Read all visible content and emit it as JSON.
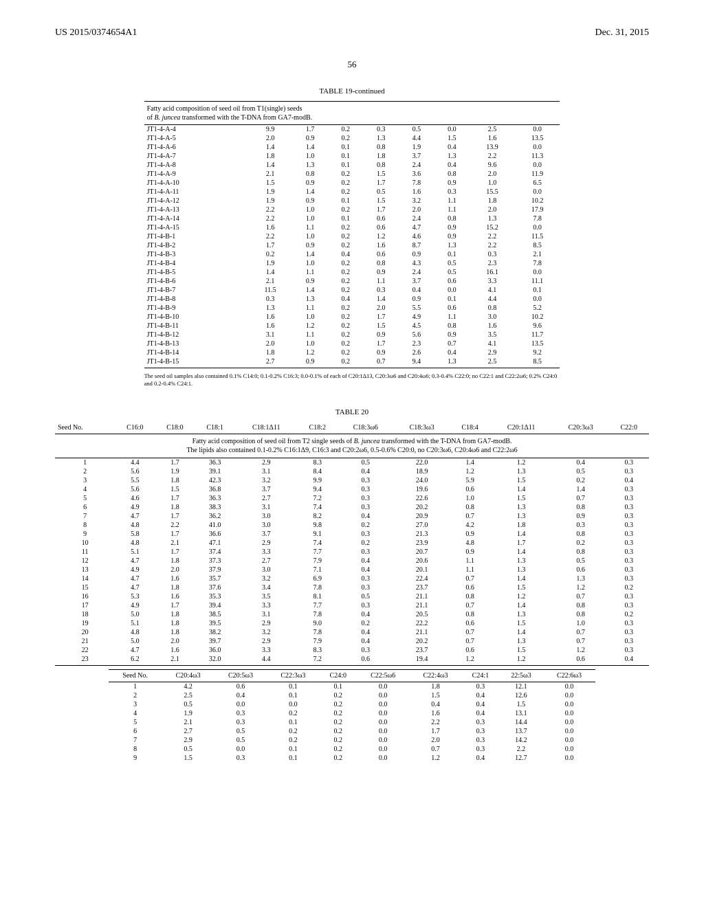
{
  "header": {
    "left": "US 2015/0374654A1",
    "right": "Dec. 31, 2015"
  },
  "page_num": "56",
  "table19": {
    "title": "TABLE 19-continued",
    "caption_line1": "Fatty acid composition of seed oil from T1(single) seeds",
    "caption_line2": "of B. juncea transformed with the T-DNA from GA7-modB.",
    "rows": [
      [
        "JT1-4-A-4",
        "9.9",
        "1.7",
        "0.2",
        "0.3",
        "0.5",
        "0.0",
        "2.5",
        "0.0"
      ],
      [
        "JT1-4-A-5",
        "2.0",
        "0.9",
        "0.2",
        "1.3",
        "4.4",
        "1.5",
        "1.6",
        "13.5"
      ],
      [
        "JT1-4-A-6",
        "1.4",
        "1.4",
        "0.1",
        "0.8",
        "1.9",
        "0.4",
        "13.9",
        "0.0"
      ],
      [
        "JT1-4-A-7",
        "1.8",
        "1.0",
        "0.1",
        "1.8",
        "3.7",
        "1.3",
        "2.2",
        "11.3"
      ],
      [
        "JT1-4-A-8",
        "1.4",
        "1.3",
        "0.1",
        "0.8",
        "2.4",
        "0.4",
        "9.6",
        "0.0"
      ],
      [
        "JT1-4-A-9",
        "2.1",
        "0.8",
        "0.2",
        "1.5",
        "3.6",
        "0.8",
        "2.0",
        "11.9"
      ],
      [
        "JT1-4-A-10",
        "1.5",
        "0.9",
        "0.2",
        "1.7",
        "7.8",
        "0.9",
        "1.0",
        "6.5"
      ],
      [
        "JT1-4-A-11",
        "1.9",
        "1.4",
        "0.2",
        "0.5",
        "1.6",
        "0.3",
        "15.5",
        "0.0"
      ],
      [
        "JT1-4-A-12",
        "1.9",
        "0.9",
        "0.1",
        "1.5",
        "3.2",
        "1.1",
        "1.8",
        "10.2"
      ],
      [
        "JT1-4-A-13",
        "2.2",
        "1.0",
        "0.2",
        "1.7",
        "2.0",
        "1.1",
        "2.0",
        "17.9"
      ],
      [
        "JT1-4-A-14",
        "2.2",
        "1.0",
        "0.1",
        "0.6",
        "2.4",
        "0.8",
        "1.3",
        "7.8"
      ],
      [
        "JT1-4-A-15",
        "1.6",
        "1.1",
        "0.2",
        "0.6",
        "4.7",
        "0.9",
        "15.2",
        "0.0"
      ],
      [
        "JT1-4-B-1",
        "2.2",
        "1.0",
        "0.2",
        "1.2",
        "4.6",
        "0.9",
        "2.2",
        "11.5"
      ],
      [
        "JT1-4-B-2",
        "1.7",
        "0.9",
        "0.2",
        "1.6",
        "8.7",
        "1.3",
        "2.2",
        "8.5"
      ],
      [
        "JT1-4-B-3",
        "0.2",
        "1.4",
        "0.4",
        "0.6",
        "0.9",
        "0.1",
        "0.3",
        "2.1"
      ],
      [
        "JT1-4-B-4",
        "1.9",
        "1.0",
        "0.2",
        "0.8",
        "4.3",
        "0.5",
        "2.3",
        "7.8"
      ],
      [
        "JT1-4-B-5",
        "1.4",
        "1.1",
        "0.2",
        "0.9",
        "2.4",
        "0.5",
        "16.1",
        "0.0"
      ],
      [
        "JT1-4-B-6",
        "2.1",
        "0.9",
        "0.2",
        "1.1",
        "3.7",
        "0.6",
        "3.3",
        "11.1"
      ],
      [
        "JT1-4-B-7",
        "11.5",
        "1.4",
        "0.2",
        "0.3",
        "0.4",
        "0.0",
        "4.1",
        "0.1"
      ],
      [
        "JT1-4-B-8",
        "0.3",
        "1.3",
        "0.4",
        "1.4",
        "0.9",
        "0.1",
        "4.4",
        "0.0"
      ],
      [
        "JT1-4-B-9",
        "1.3",
        "1.1",
        "0.2",
        "2.0",
        "5.5",
        "0.6",
        "0.8",
        "5.2"
      ],
      [
        "JT1-4-B-10",
        "1.6",
        "1.0",
        "0.2",
        "1.7",
        "4.9",
        "1.1",
        "3.0",
        "10.2"
      ],
      [
        "JT1-4-B-11",
        "1.6",
        "1.2",
        "0.2",
        "1.5",
        "4.5",
        "0.8",
        "1.6",
        "9.6"
      ],
      [
        "JT1-4-B-12",
        "3.1",
        "1.1",
        "0.2",
        "0.9",
        "5.6",
        "0.9",
        "3.5",
        "11.7"
      ],
      [
        "JT1-4-B-13",
        "2.0",
        "1.0",
        "0.2",
        "1.7",
        "2.3",
        "0.7",
        "4.1",
        "13.5"
      ],
      [
        "JT1-4-B-14",
        "1.8",
        "1.2",
        "0.2",
        "0.9",
        "2.6",
        "0.4",
        "2.9",
        "9.2"
      ],
      [
        "JT1-4-B-15",
        "2.7",
        "0.9",
        "0.2",
        "0.7",
        "9.4",
        "1.3",
        "2.5",
        "8.5"
      ]
    ],
    "footnote": "The seed oil samples also contained 0.1% C14:0; 0.1-0.2% C16:3; 0.0-0.1% of each of C20:1Δ13, C20:3ω6 and C20:4ω6; 0.3-0.4% C22:0; no C22:1 and C22:2ω6; 0.2% C24:0 and 0.2-0.4% C24:1."
  },
  "table20": {
    "title": "TABLE 20",
    "caption_line1": "Fatty acid composition of seed oil from T2 single seeds of B. juncea transformed with the T-DNA from GA7-modB.",
    "caption_line2": "The lipids also contained 0.1-0.2% C16:1Δ9, C16:3 and C20:2ω6, 0.5-0.6% C20:0, no C20:3ω6, C20:4ω6 and C22:2ω6",
    "headers_a": [
      "Seed No.",
      "C16:0",
      "C18:0",
      "C18:1",
      "C18:1Δ11",
      "C18:2",
      "C18:3ω6",
      "C18:3ω3",
      "C18:4",
      "C20:1Δ11",
      "C20:3ω3",
      "C22:0"
    ],
    "rows_a": [
      [
        "1",
        "4.4",
        "1.7",
        "36.3",
        "2.9",
        "8.3",
        "0.5",
        "22.0",
        "1.4",
        "1.2",
        "0.4",
        "0.3"
      ],
      [
        "2",
        "5.6",
        "1.9",
        "39.1",
        "3.1",
        "8.4",
        "0.4",
        "18.9",
        "1.2",
        "1.3",
        "0.5",
        "0.3"
      ],
      [
        "3",
        "5.5",
        "1.8",
        "42.3",
        "3.2",
        "9.9",
        "0.3",
        "24.0",
        "5.9",
        "1.5",
        "0.2",
        "0.4"
      ],
      [
        "4",
        "5.6",
        "1.5",
        "36.8",
        "3.7",
        "9.4",
        "0.3",
        "19.6",
        "0.6",
        "1.4",
        "1.4",
        "0.3"
      ],
      [
        "5",
        "4.6",
        "1.7",
        "36.3",
        "2.7",
        "7.2",
        "0.3",
        "22.6",
        "1.0",
        "1.5",
        "0.7",
        "0.3"
      ],
      [
        "6",
        "4.9",
        "1.8",
        "38.3",
        "3.1",
        "7.4",
        "0.3",
        "20.2",
        "0.8",
        "1.3",
        "0.8",
        "0.3"
      ],
      [
        "7",
        "4.7",
        "1.7",
        "36.2",
        "3.0",
        "8.2",
        "0.4",
        "20.9",
        "0.7",
        "1.3",
        "0.9",
        "0.3"
      ],
      [
        "8",
        "4.8",
        "2.2",
        "41.0",
        "3.0",
        "9.8",
        "0.2",
        "27.0",
        "4.2",
        "1.8",
        "0.3",
        "0.3"
      ],
      [
        "9",
        "5.8",
        "1.7",
        "36.6",
        "3.7",
        "9.1",
        "0.3",
        "21.3",
        "0.9",
        "1.4",
        "0.8",
        "0.3"
      ],
      [
        "10",
        "4.8",
        "2.1",
        "47.1",
        "2.9",
        "7.4",
        "0.2",
        "23.9",
        "4.8",
        "1.7",
        "0.2",
        "0.3"
      ],
      [
        "11",
        "5.1",
        "1.7",
        "37.4",
        "3.3",
        "7.7",
        "0.3",
        "20.7",
        "0.9",
        "1.4",
        "0.8",
        "0.3"
      ],
      [
        "12",
        "4.7",
        "1.8",
        "37.3",
        "2.7",
        "7.9",
        "0.4",
        "20.6",
        "1.1",
        "1.3",
        "0.5",
        "0.3"
      ],
      [
        "13",
        "4.9",
        "2.0",
        "37.9",
        "3.0",
        "7.1",
        "0.4",
        "20.1",
        "1.1",
        "1.3",
        "0.6",
        "0.3"
      ],
      [
        "14",
        "4.7",
        "1.6",
        "35.7",
        "3.2",
        "6.9",
        "0.3",
        "22.4",
        "0.7",
        "1.4",
        "1.3",
        "0.3"
      ],
      [
        "15",
        "4.7",
        "1.8",
        "37.6",
        "3.4",
        "7.8",
        "0.3",
        "23.7",
        "0.6",
        "1.5",
        "1.2",
        "0.2"
      ],
      [
        "16",
        "5.3",
        "1.6",
        "35.3",
        "3.5",
        "8.1",
        "0.5",
        "21.1",
        "0.8",
        "1.2",
        "0.7",
        "0.3"
      ],
      [
        "17",
        "4.9",
        "1.7",
        "39.4",
        "3.3",
        "7.7",
        "0.3",
        "21.1",
        "0.7",
        "1.4",
        "0.8",
        "0.3"
      ],
      [
        "18",
        "5.0",
        "1.8",
        "38.5",
        "3.1",
        "7.8",
        "0.4",
        "20.5",
        "0.8",
        "1.3",
        "0.8",
        "0.2"
      ],
      [
        "19",
        "5.1",
        "1.8",
        "39.5",
        "2.9",
        "9.0",
        "0.2",
        "22.2",
        "0.6",
        "1.5",
        "1.0",
        "0.3"
      ],
      [
        "20",
        "4.8",
        "1.8",
        "38.2",
        "3.2",
        "7.8",
        "0.4",
        "21.1",
        "0.7",
        "1.4",
        "0.7",
        "0.3"
      ],
      [
        "21",
        "5.0",
        "2.0",
        "39.7",
        "2.9",
        "7.9",
        "0.4",
        "20.2",
        "0.7",
        "1.3",
        "0.7",
        "0.3"
      ],
      [
        "22",
        "4.7",
        "1.6",
        "36.0",
        "3.3",
        "8.3",
        "0.3",
        "23.7",
        "0.6",
        "1.5",
        "1.2",
        "0.3"
      ],
      [
        "23",
        "6.2",
        "2.1",
        "32.0",
        "4.4",
        "7.2",
        "0.6",
        "19.4",
        "1.2",
        "1.2",
        "0.6",
        "0.4"
      ]
    ],
    "headers_b": [
      "Seed No.",
      "C20:4ω3",
      "C20:5ω3",
      "C22:3ω3",
      "C24:0",
      "C22:5ω6",
      "C22:4ω3",
      "C24:1",
      "22:5ω3",
      "C22:6ω3"
    ],
    "rows_b": [
      [
        "1",
        "4.2",
        "0.6",
        "0.1",
        "0.1",
        "0.0",
        "1.8",
        "0.3",
        "12.1",
        "0.0"
      ],
      [
        "2",
        "2.5",
        "0.4",
        "0.1",
        "0.2",
        "0.0",
        "1.5",
        "0.4",
        "12.6",
        "0.0"
      ],
      [
        "3",
        "0.5",
        "0.0",
        "0.0",
        "0.2",
        "0.0",
        "0.4",
        "0.4",
        "1.5",
        "0.0"
      ],
      [
        "4",
        "1.9",
        "0.3",
        "0.2",
        "0.2",
        "0.0",
        "1.6",
        "0.4",
        "13.1",
        "0.0"
      ],
      [
        "5",
        "2.1",
        "0.3",
        "0.1",
        "0.2",
        "0.0",
        "2.2",
        "0.3",
        "14.4",
        "0.0"
      ],
      [
        "6",
        "2.7",
        "0.5",
        "0.2",
        "0.2",
        "0.0",
        "1.7",
        "0.3",
        "13.7",
        "0.0"
      ],
      [
        "7",
        "2.9",
        "0.5",
        "0.2",
        "0.2",
        "0.0",
        "2.0",
        "0.3",
        "14.2",
        "0.0"
      ],
      [
        "8",
        "0.5",
        "0.0",
        "0.1",
        "0.2",
        "0.0",
        "0.7",
        "0.3",
        "2.2",
        "0.0"
      ],
      [
        "9",
        "1.5",
        "0.3",
        "0.1",
        "0.2",
        "0.0",
        "1.2",
        "0.4",
        "12.7",
        "0.0"
      ]
    ]
  }
}
